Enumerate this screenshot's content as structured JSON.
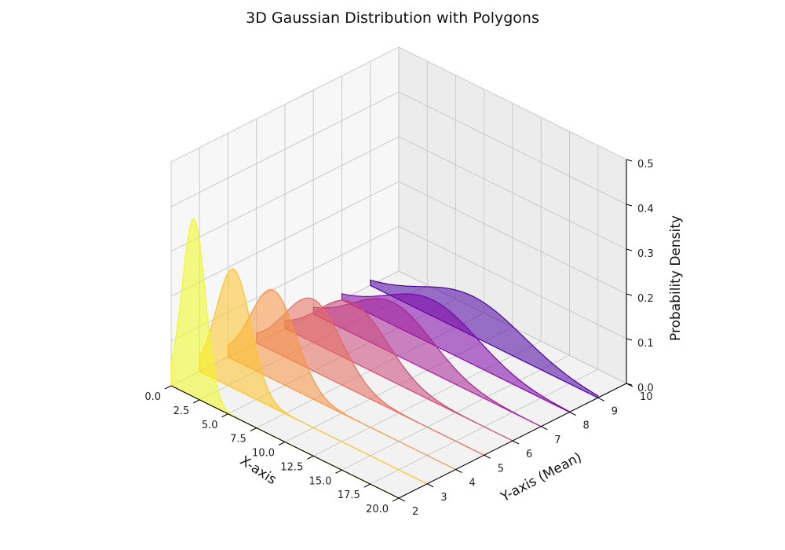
{
  "chart_data": {
    "type": "area",
    "projection": "3d",
    "title": "3D Gaussian Distribution with Polygons",
    "xlabel": "X-axis",
    "ylabel": "Y-axis (Mean)",
    "zlabel": "Probability Density",
    "xlim": [
      0,
      20
    ],
    "ylim": [
      2,
      10
    ],
    "zlim": [
      0,
      0.5
    ],
    "x_ticks": [
      "0.0",
      "2.5",
      "5.0",
      "7.5",
      "10.0",
      "12.5",
      "15.0",
      "17.5",
      "20.0"
    ],
    "y_ticks": [
      "2",
      "3",
      "4",
      "5",
      "6",
      "7",
      "8",
      "9",
      "10"
    ],
    "z_ticks": [
      "0.0",
      "0.1",
      "0.2",
      "0.3",
      "0.4",
      "0.5"
    ],
    "grid": true,
    "colormap": "plasma",
    "series": [
      {
        "mean": 2,
        "std": 1.0,
        "color": "#f0f921"
      },
      {
        "mean": 3,
        "std": 1.5,
        "color": "#fdc328"
      },
      {
        "mean": 4,
        "std": 2.0,
        "color": "#f89441"
      },
      {
        "mean": 5,
        "std": 2.5,
        "color": "#e56b5d"
      },
      {
        "mean": 6,
        "std": 3.0,
        "color": "#cb4778"
      },
      {
        "mean": 7,
        "std": 3.5,
        "color": "#a82296"
      },
      {
        "mean": 8,
        "std": 4.0,
        "color": "#7e03a8"
      },
      {
        "mean": 9,
        "std": 4.5,
        "color": "#4c02a1"
      }
    ]
  }
}
